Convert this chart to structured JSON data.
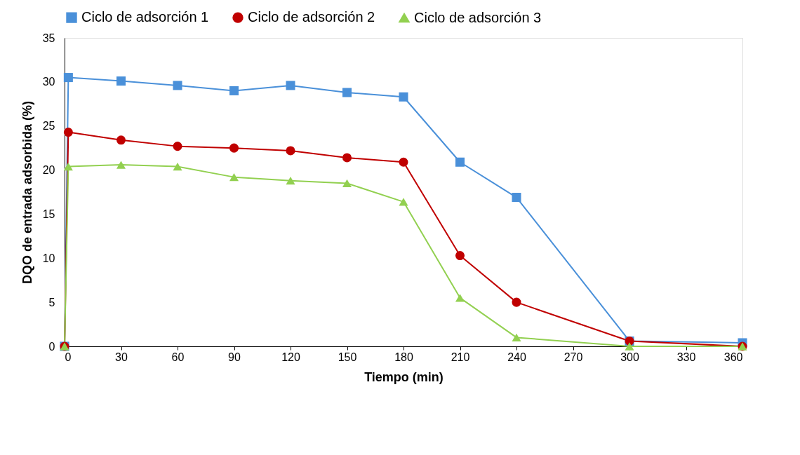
{
  "chart_data": {
    "type": "line",
    "xlabel": "Tiempo (min)",
    "ylabel": "DQO de entrada adsorbida (%)",
    "x": [
      0,
      2,
      30,
      60,
      90,
      120,
      150,
      180,
      210,
      240,
      300,
      360
    ],
    "xlim": [
      0,
      360
    ],
    "xticks": [
      0,
      30,
      60,
      90,
      120,
      150,
      180,
      210,
      240,
      270,
      300,
      330,
      360
    ],
    "ylim": [
      0,
      35
    ],
    "yticks": [
      0,
      5,
      10,
      15,
      20,
      25,
      30,
      35
    ],
    "grid": false,
    "legend": "top",
    "series": [
      {
        "name": "Ciclo de adsorción 1",
        "color": "#4a90d9",
        "marker": "square",
        "values": [
          0,
          30.5,
          30.1,
          29.6,
          29.0,
          29.6,
          28.8,
          28.3,
          20.9,
          16.9,
          0.6,
          0.4
        ]
      },
      {
        "name": "Ciclo de adsorción 2",
        "color": "#c00000",
        "marker": "circle",
        "values": [
          0,
          24.3,
          23.4,
          22.7,
          22.5,
          22.2,
          21.4,
          20.9,
          10.3,
          5.0,
          0.6,
          0
        ]
      },
      {
        "name": "Ciclo de adsorción 3",
        "color": "#92d050",
        "marker": "triangle",
        "values": [
          0,
          20.4,
          20.6,
          20.4,
          19.2,
          18.8,
          18.5,
          16.4,
          5.5,
          1.0,
          0,
          0
        ]
      }
    ]
  }
}
